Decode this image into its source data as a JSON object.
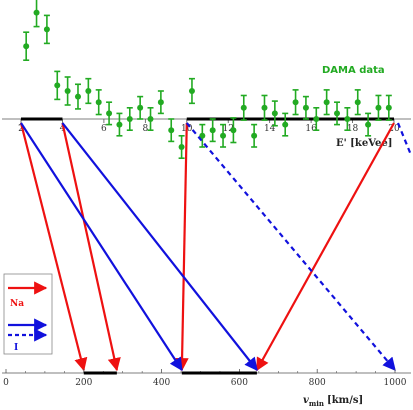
{
  "colors": {
    "data_points": "#22aa22",
    "sodium": "#ee1111",
    "iodine": "#1111dd",
    "axis": "#555555",
    "interval": "#000000"
  },
  "chart_data": [
    {
      "type": "scatter",
      "title": "DAMA data",
      "xlabel": "E' [keVee]",
      "xlim": [
        2,
        20
      ],
      "xticks": [
        2,
        4,
        6,
        8,
        10,
        12,
        14,
        16,
        18,
        20
      ],
      "x_tick_labels": [
        "2",
        "4",
        "6",
        "8",
        "10",
        "12",
        "14",
        "16",
        "18",
        "20"
      ],
      "ylim": [
        -0.05,
        0.22
      ],
      "grid": false,
      "series": [
        {
          "x": [
            2.25,
            2.75,
            3.25,
            3.75,
            4.25,
            4.75,
            5.25,
            5.75,
            6.25,
            6.75,
            7.25,
            7.75,
            8.25,
            8.75,
            9.25,
            9.75,
            10.25,
            10.75,
            11.25,
            11.75,
            12.25,
            12.75,
            13.25,
            13.75,
            14.25,
            14.75,
            15.25,
            15.75,
            16.25,
            16.75,
            17.25,
            17.75,
            18.25,
            18.75,
            19.25,
            19.75
          ],
          "y": [
            0.13,
            0.19,
            0.16,
            0.06,
            0.05,
            0.04,
            0.05,
            0.03,
            0.01,
            -0.01,
            0.0,
            0.02,
            0.0,
            0.03,
            -0.02,
            -0.05,
            0.05,
            -0.03,
            -0.02,
            -0.03,
            -0.02,
            0.02,
            -0.03,
            0.02,
            0.01,
            -0.01,
            0.03,
            0.02,
            0.0,
            0.03,
            0.01,
            0.0,
            0.03,
            -0.01,
            0.02,
            0.02
          ],
          "err": [
            0.025,
            0.025,
            0.025,
            0.025,
            0.025,
            0.022,
            0.022,
            0.022,
            0.02,
            0.02,
            0.02,
            0.02,
            0.02,
            0.02,
            0.02,
            0.02,
            0.022,
            0.02,
            0.02,
            0.02,
            0.022,
            0.022,
            0.02,
            0.022,
            0.022,
            0.02,
            0.022,
            0.02,
            0.02,
            0.022,
            0.02,
            0.02,
            0.022,
            0.02,
            0.022,
            0.022
          ]
        }
      ],
      "intervals": [
        {
          "from": 2,
          "to": 4
        },
        {
          "from": 10,
          "to": 20
        }
      ]
    },
    {
      "type": "line",
      "title": "",
      "xlabel_main": "v",
      "xlabel_sub": "min",
      "xlabel_unit": "[km/s]",
      "xlim": [
        0,
        1000
      ],
      "xticks": [
        0,
        200,
        400,
        600,
        800,
        1000
      ],
      "x_tick_labels": [
        "0",
        "200",
        "400",
        "600",
        "800",
        "1000"
      ],
      "intervals": [
        {
          "from": 200,
          "to": 285
        },
        {
          "from": 452,
          "to": 645
        }
      ]
    },
    {
      "type": "line",
      "mapping_arrows": [
        {
          "element": "Na",
          "from_energy": 2,
          "to_vmin": 200,
          "style": "solid"
        },
        {
          "element": "Na",
          "from_energy": 4,
          "to_vmin": 285,
          "style": "solid"
        },
        {
          "element": "Na",
          "from_energy": 10,
          "to_vmin": 452,
          "style": "solid"
        },
        {
          "element": "Na",
          "from_energy": 20,
          "to_vmin": 645,
          "style": "solid"
        },
        {
          "element": "I",
          "from_energy": 2,
          "to_vmin": 452,
          "style": "solid"
        },
        {
          "element": "I",
          "from_energy": 4,
          "to_vmin": 645,
          "style": "solid"
        },
        {
          "element": "I",
          "from_energy": 10,
          "to_vmin": 1000,
          "style": "dashed"
        }
      ],
      "legend": {
        "placement": "bottom-left",
        "entries": [
          {
            "label": "Na",
            "element": "Na",
            "style": "solid"
          },
          {
            "label": "I",
            "element": "I",
            "style": "solid-and-dashed"
          }
        ]
      }
    }
  ]
}
